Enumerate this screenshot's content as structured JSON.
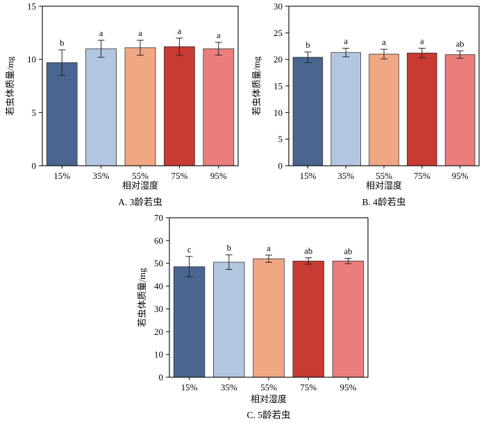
{
  "colors": {
    "bars": [
      "#4a6690",
      "#b3c6df",
      "#f0a783",
      "#c93a32",
      "#ea7e7d"
    ],
    "axis": "#000000",
    "bar_edge": "#333333",
    "error_bar": "#222222"
  },
  "chart_data": [
    {
      "type": "bar",
      "caption": "A. 3龄若虫",
      "xlabel": "相对湿度",
      "ylabel": "若虫体质量/mg",
      "categories": [
        "15%",
        "35%",
        "55%",
        "75%",
        "95%"
      ],
      "values": [
        9.7,
        11.0,
        11.1,
        11.2,
        11.0
      ],
      "errors": [
        1.2,
        0.8,
        0.7,
        0.8,
        0.6
      ],
      "letters": [
        "b",
        "a",
        "a",
        "a",
        "a"
      ],
      "ylim": [
        0,
        15
      ],
      "yticks": [
        0,
        5,
        10,
        15
      ],
      "grid": false,
      "legend": "none"
    },
    {
      "type": "bar",
      "caption": "B. 4龄若虫",
      "xlabel": "相对湿度",
      "ylabel": "若虫体质量/mg",
      "categories": [
        "15%",
        "35%",
        "55%",
        "75%",
        "95%"
      ],
      "values": [
        20.4,
        21.3,
        21.0,
        21.2,
        20.9
      ],
      "errors": [
        1.0,
        0.8,
        0.9,
        0.9,
        0.7
      ],
      "letters": [
        "b",
        "a",
        "a",
        "a",
        "ab"
      ],
      "ylim": [
        0,
        30
      ],
      "yticks": [
        0,
        5,
        10,
        15,
        20,
        25,
        30
      ],
      "grid": false,
      "legend": "none"
    },
    {
      "type": "bar",
      "caption": "C. 5龄若虫",
      "xlabel": "相对湿度",
      "ylabel": "若虫体质量/mg",
      "categories": [
        "15%",
        "35%",
        "55%",
        "75%",
        "95%"
      ],
      "values": [
        48.5,
        50.5,
        52.0,
        51.0,
        51.0
      ],
      "errors": [
        4.5,
        3.2,
        1.6,
        1.4,
        1.2
      ],
      "letters": [
        "c",
        "b",
        "a",
        "ab",
        "ab"
      ],
      "ylim": [
        0,
        70
      ],
      "yticks": [
        0,
        10,
        20,
        30,
        40,
        50,
        60,
        70
      ],
      "grid": false,
      "legend": "none"
    }
  ]
}
